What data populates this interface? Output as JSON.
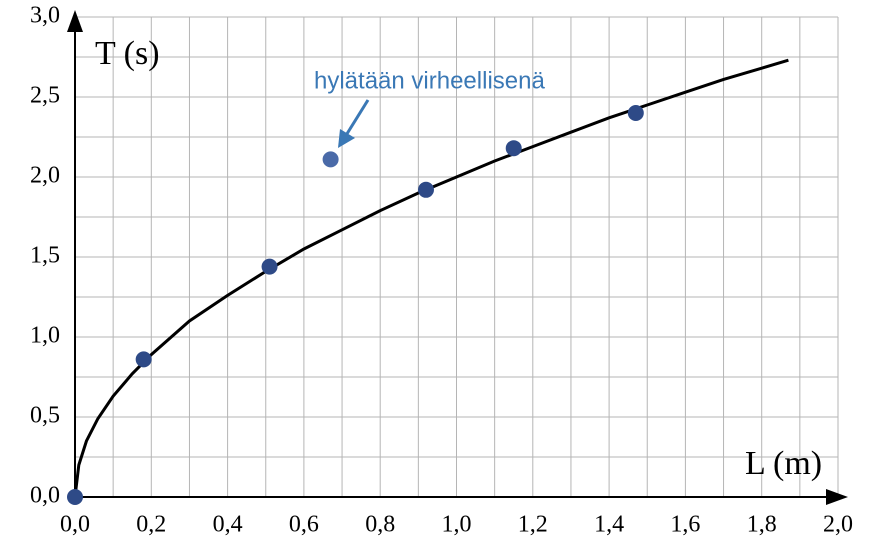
{
  "chart_data": {
    "type": "scatter",
    "x_label": "L (m)",
    "y_label": "T (s)",
    "annotation": "hylätään virheellisenä",
    "xlim": [
      0,
      2.0
    ],
    "ylim": [
      0,
      3.0
    ],
    "xticks": [
      {
        "value": 0,
        "label": "0,0"
      },
      {
        "value": 0.2,
        "label": "0,2"
      },
      {
        "value": 0.4,
        "label": "0,4"
      },
      {
        "value": 0.6,
        "label": "0,6"
      },
      {
        "value": 0.8,
        "label": "0,8"
      },
      {
        "value": 1.0,
        "label": "1,0"
      },
      {
        "value": 1.2,
        "label": "1,2"
      },
      {
        "value": 1.4,
        "label": "1,4"
      },
      {
        "value": 1.6,
        "label": "1,6"
      },
      {
        "value": 1.8,
        "label": "1,8"
      },
      {
        "value": 2.0,
        "label": "2,0"
      }
    ],
    "yticks": [
      {
        "value": 0,
        "label": "0,0"
      },
      {
        "value": 0.5,
        "label": "0,5"
      },
      {
        "value": 1.0,
        "label": "1,0"
      },
      {
        "value": 1.5,
        "label": "1,5"
      },
      {
        "value": 2.0,
        "label": "2,0"
      },
      {
        "value": 2.5,
        "label": "2,5"
      },
      {
        "value": 3.0,
        "label": "3,0"
      }
    ],
    "xminorticks": [
      0.1,
      0.3,
      0.5,
      0.7,
      0.9,
      1.1,
      1.3,
      1.5,
      1.7,
      1.9
    ],
    "yminorticks": [
      0.25,
      0.75,
      1.25,
      1.75,
      2.25,
      2.75
    ],
    "grid": true,
    "series": [
      {
        "kind": "points",
        "color": "#2e4a87",
        "x": [
          0,
          0.18,
          0.51,
          0.92,
          1.15,
          1.47
        ],
        "values": [
          0,
          0.86,
          1.44,
          1.92,
          2.18,
          2.4
        ]
      },
      {
        "kind": "points",
        "color": "#4a6aa8",
        "x": [
          0.67
        ],
        "values": [
          2.11
        ]
      },
      {
        "kind": "line",
        "color": "#000000",
        "x": [
          0,
          0.01,
          0.03,
          0.06,
          0.1,
          0.15,
          0.2,
          0.3,
          0.4,
          0.5,
          0.6,
          0.7,
          0.8,
          0.9,
          1.0,
          1.1,
          1.2,
          1.3,
          1.4,
          1.5,
          1.6,
          1.7,
          1.8,
          1.87
        ],
        "values": [
          0,
          0.2,
          0.35,
          0.49,
          0.63,
          0.77,
          0.89,
          1.1,
          1.26,
          1.41,
          1.55,
          1.67,
          1.79,
          1.9,
          2.0,
          2.1,
          2.19,
          2.28,
          2.37,
          2.45,
          2.53,
          2.61,
          2.68,
          2.73
        ]
      }
    ]
  }
}
